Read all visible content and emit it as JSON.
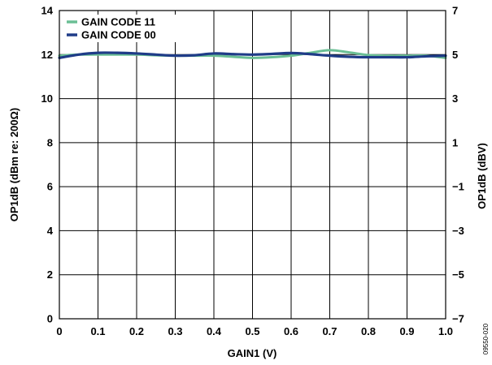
{
  "chart_data": {
    "type": "line",
    "title": "",
    "xlabel": "GAIN1 (V)",
    "ylabel": "OP1dB (dBm re: 200Ω)",
    "y2label": "OP1dB (dBV)",
    "xlim": [
      0,
      1.0
    ],
    "ylim": [
      0,
      14
    ],
    "y2lim": [
      -7,
      7
    ],
    "x_ticks": [
      "0",
      "0.1",
      "0.2",
      "0.3",
      "0.4",
      "0.5",
      "0.6",
      "0.7",
      "0.8",
      "0.9",
      "1.0"
    ],
    "y_ticks": [
      "0",
      "2",
      "4",
      "6",
      "8",
      "10",
      "12",
      "14"
    ],
    "y2_ticks": [
      "−7",
      "−5",
      "−3",
      "−1",
      "1",
      "3",
      "5",
      "7"
    ],
    "grid": true,
    "legend_position": "top-left",
    "series": [
      {
        "name": "GAIN CODE 11",
        "color": "#6bbf95",
        "x": [
          0,
          0.05,
          0.1,
          0.15,
          0.2,
          0.25,
          0.3,
          0.35,
          0.4,
          0.45,
          0.5,
          0.55,
          0.6,
          0.65,
          0.7,
          0.75,
          0.8,
          0.85,
          0.9,
          0.95,
          1.0
        ],
        "y": [
          11.95,
          12.0,
          12.0,
          12.0,
          12.0,
          11.97,
          11.95,
          11.95,
          11.95,
          11.9,
          11.85,
          11.88,
          11.95,
          12.08,
          12.2,
          12.1,
          11.98,
          11.95,
          11.95,
          11.95,
          11.85
        ]
      },
      {
        "name": "GAIN CODE 00",
        "color": "#1f3c88",
        "x": [
          0,
          0.05,
          0.1,
          0.15,
          0.2,
          0.25,
          0.3,
          0.35,
          0.4,
          0.45,
          0.5,
          0.55,
          0.6,
          0.65,
          0.7,
          0.75,
          0.8,
          0.85,
          0.9,
          0.95,
          1.0
        ],
        "y": [
          11.85,
          12.0,
          12.08,
          12.08,
          12.05,
          12.0,
          11.95,
          11.97,
          12.05,
          12.02,
          12.0,
          12.03,
          12.07,
          12.02,
          11.95,
          11.9,
          11.88,
          11.88,
          11.88,
          11.92,
          11.95
        ]
      }
    ],
    "figure_id": "09550-020"
  }
}
